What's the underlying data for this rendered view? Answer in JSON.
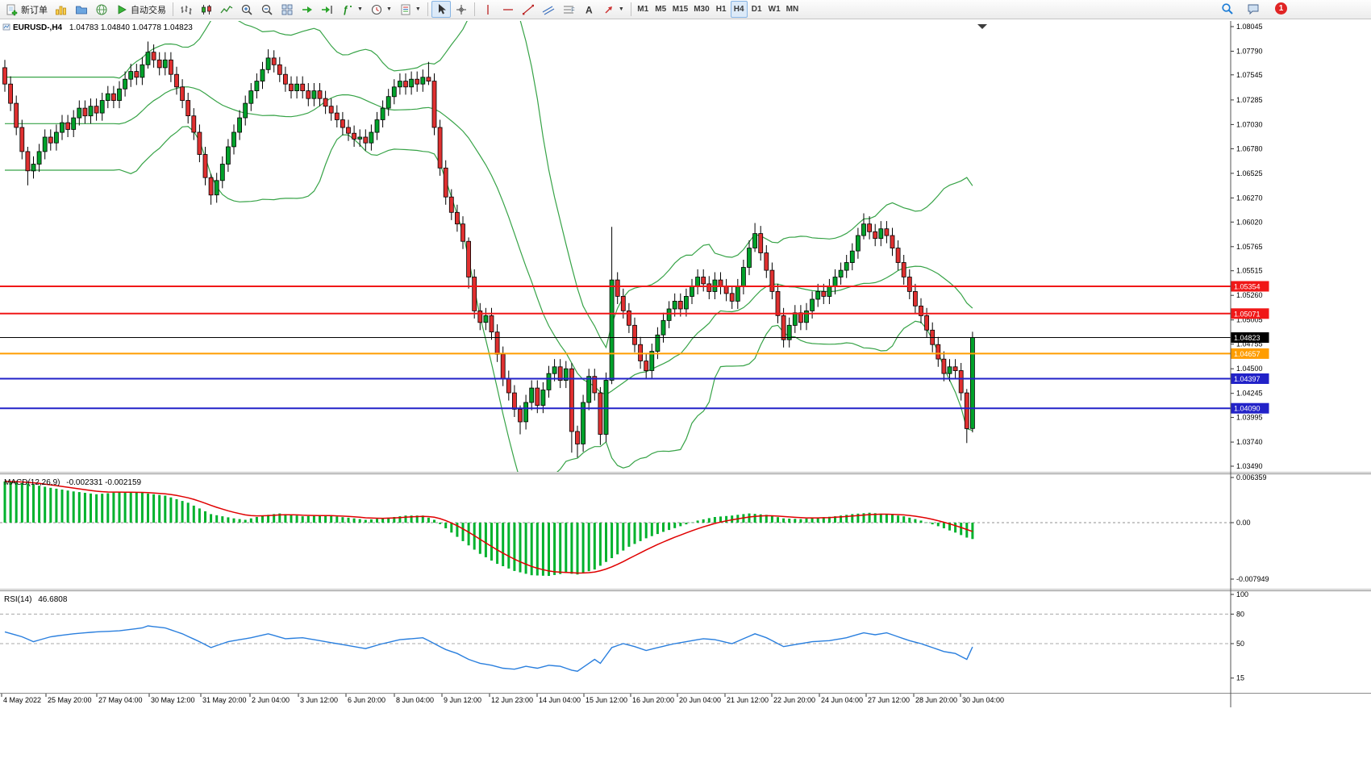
{
  "toolbar": {
    "new_order_label": "新订单",
    "autotrading_label": "自动交易",
    "timeframes": [
      "M1",
      "M5",
      "M15",
      "M30",
      "H1",
      "H4",
      "D1",
      "W1",
      "MN"
    ],
    "active_timeframe": "H4",
    "notification_count": "1"
  },
  "chart_data": {
    "type": "candlestick",
    "title": "EURUSD-,H4",
    "ohlc_readout": "1.04783 1.04840 1.04778 1.04823",
    "price_panel": {
      "axis_labels": [
        "1.08045",
        "1.07790",
        "1.07545",
        "1.07285",
        "1.07030",
        "1.06780",
        "1.06525",
        "1.06270",
        "1.06020",
        "1.05765",
        "1.05515",
        "1.05260",
        "1.05005",
        "1.04755",
        "1.04500",
        "1.04245",
        "1.03995",
        "1.03740",
        "1.03490"
      ],
      "hlines": [
        {
          "price": 1.05354,
          "label": "1.05354",
          "color": "#f01818",
          "width": 2
        },
        {
          "price": 1.05071,
          "label": "1.05071",
          "color": "#f01818",
          "width": 2
        },
        {
          "price": 1.04823,
          "label": "1.04823",
          "color": "#000000",
          "width": 1
        },
        {
          "price": 1.04657,
          "label": "1.04657",
          "color": "#ff9d00",
          "width": 2
        },
        {
          "price": 1.04397,
          "label": "1.04397",
          "color": "#2222c8",
          "width": 2
        },
        {
          "price": 1.0409,
          "label": "1.04090",
          "color": "#2222c8",
          "width": 2
        }
      ],
      "bollinger": {
        "period": 20,
        "deviation": 2,
        "color": "#37a347"
      },
      "candles": {
        "up_color": "#00a22b",
        "down_color": "#e03030",
        "outline": "#000000",
        "open_first": 1.0762,
        "default_wick": 0.0008,
        "wick_overrides": {
          "4": [
            0.0005,
            0.0015
          ],
          "25": [
            0.0011,
            0.0004
          ],
          "36": [
            0.0004,
            0.001
          ],
          "46": [
            0.0009,
            0.0004
          ],
          "74": [
            0.0016,
            0.0004
          ],
          "81": [
            0.0004,
            0.0012
          ],
          "90": [
            0.0004,
            0.0013
          ],
          "99": [
            0.0006,
            0.0022
          ],
          "100": [
            0.0006,
            0.0014
          ],
          "104": [
            0.0006,
            0.0011
          ],
          "106": [
            0.0055,
            0.0004
          ],
          "131": [
            0.0011,
            0.0004
          ],
          "150": [
            0.0011,
            0.0004
          ],
          "168": [
            0.0004,
            0.0015
          ],
          "169": [
            0.0006,
            0.0004
          ]
        },
        "closes": [
          1.0745,
          1.0725,
          1.07,
          1.0675,
          1.0655,
          1.0662,
          1.0675,
          1.069,
          1.0684,
          1.0695,
          1.0705,
          1.0698,
          1.071,
          1.072,
          1.0712,
          1.0722,
          1.0715,
          1.0728,
          1.0735,
          1.0728,
          1.074,
          1.075,
          1.0758,
          1.0752,
          1.0765,
          1.0778,
          1.077,
          1.0762,
          1.077,
          1.0755,
          1.0742,
          1.0728,
          1.0712,
          1.0695,
          1.0672,
          1.0648,
          1.063,
          1.0645,
          1.0662,
          1.068,
          1.0695,
          1.071,
          1.0725,
          1.0738,
          1.0748,
          1.076,
          1.0772,
          1.0765,
          1.0755,
          1.0745,
          1.0738,
          1.0745,
          1.0738,
          1.073,
          1.0738,
          1.073,
          1.0722,
          1.0715,
          1.0708,
          1.07,
          1.0694,
          1.0688,
          1.069,
          1.0684,
          1.0695,
          1.0708,
          1.072,
          1.0732,
          1.0742,
          1.0748,
          1.0742,
          1.075,
          1.0745,
          1.0752,
          1.0748,
          1.07,
          1.0658,
          1.0628,
          1.0612,
          1.06,
          1.0582,
          1.0545,
          1.051,
          1.0498,
          1.0505,
          1.0488,
          1.0465,
          1.044,
          1.0425,
          1.0408,
          1.0395,
          1.0415,
          1.043,
          1.0412,
          1.0428,
          1.0445,
          1.0452,
          1.0438,
          1.045,
          1.0385,
          1.0372,
          1.0415,
          1.0442,
          1.0425,
          1.0382,
          1.0438,
          1.0542,
          1.0525,
          1.051,
          1.0495,
          1.0475,
          1.0458,
          1.0448,
          1.0468,
          1.0485,
          1.05,
          1.0512,
          1.052,
          1.0512,
          1.0525,
          1.0535,
          1.0545,
          1.0538,
          1.053,
          1.0542,
          1.0535,
          1.0528,
          1.052,
          1.0535,
          1.0555,
          1.0575,
          1.059,
          1.057,
          1.0552,
          1.053,
          1.0505,
          1.048,
          1.0495,
          1.0508,
          1.0498,
          1.051,
          1.0522,
          1.053,
          1.0525,
          1.0535,
          1.0545,
          1.0552,
          1.056,
          1.0572,
          1.0588,
          1.06,
          1.0592,
          1.0585,
          1.0595,
          1.0588,
          1.0575,
          1.056,
          1.0545,
          1.053,
          1.0515,
          1.0505,
          1.049,
          1.0475,
          1.046,
          1.0445,
          1.0452,
          1.0448,
          1.0425,
          1.0388,
          1.04823
        ]
      },
      "shift_marker": true
    },
    "macd_panel": {
      "label": "MACD(12,26,9)",
      "values_text": "-0.002331 -0.002159",
      "axis": [
        {
          "text": "0.006359",
          "value": 0.006359
        },
        {
          "text": "0.00",
          "value": 0
        },
        {
          "text": "-0.007949",
          "value": -0.007949
        }
      ],
      "histogram_color": "#00b22d",
      "signal_color": "#e00000",
      "histogram_anchors": [
        [
          0,
          0.0058
        ],
        [
          4,
          0.0055
        ],
        [
          8,
          0.0049
        ],
        [
          12,
          0.0044
        ],
        [
          16,
          0.004
        ],
        [
          20,
          0.0043
        ],
        [
          24,
          0.0042
        ],
        [
          28,
          0.0038
        ],
        [
          32,
          0.0028
        ],
        [
          36,
          0.0012
        ],
        [
          40,
          0.0006
        ],
        [
          42,
          0.0004
        ],
        [
          45,
          0.001
        ],
        [
          48,
          0.0013
        ],
        [
          52,
          0.0009
        ],
        [
          56,
          0.001
        ],
        [
          60,
          0.0007
        ],
        [
          63,
          0.0004
        ],
        [
          66,
          0.0006
        ],
        [
          70,
          0.001
        ],
        [
          73,
          0.001
        ],
        [
          75,
          0.0004
        ],
        [
          77,
          -0.0008
        ],
        [
          80,
          -0.0026
        ],
        [
          83,
          -0.0044
        ],
        [
          86,
          -0.0058
        ],
        [
          89,
          -0.0068
        ],
        [
          92,
          -0.0074
        ],
        [
          95,
          -0.0075
        ],
        [
          98,
          -0.0071
        ],
        [
          100,
          -0.0073
        ],
        [
          103,
          -0.0066
        ],
        [
          106,
          -0.005
        ],
        [
          109,
          -0.0034
        ],
        [
          112,
          -0.0022
        ],
        [
          115,
          -0.0013
        ],
        [
          118,
          -0.0005
        ],
        [
          121,
          0.0003
        ],
        [
          124,
          0.0008
        ],
        [
          127,
          0.001
        ],
        [
          130,
          0.0013
        ],
        [
          133,
          0.0011
        ],
        [
          136,
          0.0006
        ],
        [
          139,
          0.0005
        ],
        [
          142,
          0.0007
        ],
        [
          145,
          0.0009
        ],
        [
          148,
          0.0012
        ],
        [
          151,
          0.0014
        ],
        [
          154,
          0.0012
        ],
        [
          157,
          0.0009
        ],
        [
          160,
          0.0003
        ],
        [
          163,
          -0.0005
        ],
        [
          166,
          -0.0014
        ],
        [
          168,
          -0.0021
        ],
        [
          169,
          -0.0023
        ]
      ]
    },
    "rsi_panel": {
      "label": "RSI(14)",
      "value_text": "46.6808",
      "axis": [
        {
          "text": "100",
          "value": 100
        },
        {
          "text": "80",
          "value": 80
        },
        {
          "text": "50",
          "value": 50
        },
        {
          "text": "15",
          "value": 15
        }
      ],
      "levels": [
        80,
        50
      ],
      "line_color": "#2a7fde",
      "anchors": [
        [
          0,
          62
        ],
        [
          3,
          57
        ],
        [
          5,
          52
        ],
        [
          8,
          57
        ],
        [
          12,
          60
        ],
        [
          16,
          62
        ],
        [
          20,
          63
        ],
        [
          24,
          66
        ],
        [
          25,
          68
        ],
        [
          28,
          66
        ],
        [
          31,
          60
        ],
        [
          34,
          52
        ],
        [
          36,
          46
        ],
        [
          39,
          52
        ],
        [
          43,
          56
        ],
        [
          46,
          60
        ],
        [
          49,
          55
        ],
        [
          52,
          56
        ],
        [
          55,
          53
        ],
        [
          58,
          50
        ],
        [
          61,
          47
        ],
        [
          63,
          45
        ],
        [
          66,
          50
        ],
        [
          69,
          54
        ],
        [
          73,
          56
        ],
        [
          75,
          50
        ],
        [
          77,
          44
        ],
        [
          79,
          40
        ],
        [
          81,
          34
        ],
        [
          83,
          30
        ],
        [
          85,
          28
        ],
        [
          87,
          25
        ],
        [
          89,
          24
        ],
        [
          91,
          27
        ],
        [
          93,
          25
        ],
        [
          95,
          28
        ],
        [
          97,
          27
        ],
        [
          99,
          23
        ],
        [
          100,
          22
        ],
        [
          102,
          30
        ],
        [
          103,
          34
        ],
        [
          104,
          30
        ],
        [
          106,
          46
        ],
        [
          108,
          50
        ],
        [
          110,
          47
        ],
        [
          112,
          43
        ],
        [
          114,
          46
        ],
        [
          117,
          50
        ],
        [
          120,
          53
        ],
        [
          122,
          55
        ],
        [
          124,
          54
        ],
        [
          127,
          50
        ],
        [
          129,
          55
        ],
        [
          131,
          60
        ],
        [
          133,
          56
        ],
        [
          135,
          50
        ],
        [
          136,
          47
        ],
        [
          138,
          49
        ],
        [
          141,
          52
        ],
        [
          144,
          53
        ],
        [
          147,
          56
        ],
        [
          150,
          61
        ],
        [
          152,
          59
        ],
        [
          154,
          61
        ],
        [
          156,
          57
        ],
        [
          158,
          53
        ],
        [
          160,
          50
        ],
        [
          162,
          46
        ],
        [
          164,
          42
        ],
        [
          166,
          40
        ],
        [
          167,
          37
        ],
        [
          168,
          34
        ],
        [
          169,
          46.68
        ]
      ]
    },
    "time_axis": {
      "labels": [
        [
          2,
          "4 May 2022"
        ],
        [
          57,
          "25 May 20:00"
        ],
        [
          120,
          "27 May 04:00"
        ],
        [
          185,
          "30 May 12:00"
        ],
        [
          249,
          "31 May 20:00"
        ],
        [
          310,
          "2 Jun 04:00"
        ],
        [
          370,
          "3 Jun 12:00"
        ],
        [
          429,
          "6 Jun 20:00"
        ],
        [
          489,
          "8 Jun 04:00"
        ],
        [
          548,
          "9 Jun 12:00"
        ],
        [
          607,
          "12 Jun 23:00"
        ],
        [
          666,
          "14 Jun 04:00"
        ],
        [
          724,
          "15 Jun 12:00"
        ],
        [
          782,
          "16 Jun 20:00"
        ],
        [
          840,
          "20 Jun 04:00"
        ],
        [
          899,
          "21 Jun 12:00"
        ],
        [
          957,
          "22 Jun 20:00"
        ],
        [
          1016,
          "24 Jun 04:00"
        ],
        [
          1074,
          "27 Jun 12:00"
        ],
        [
          1133,
          "28 Jun 20:00"
        ],
        [
          1191,
          "30 Jun 04:00"
        ]
      ]
    }
  }
}
